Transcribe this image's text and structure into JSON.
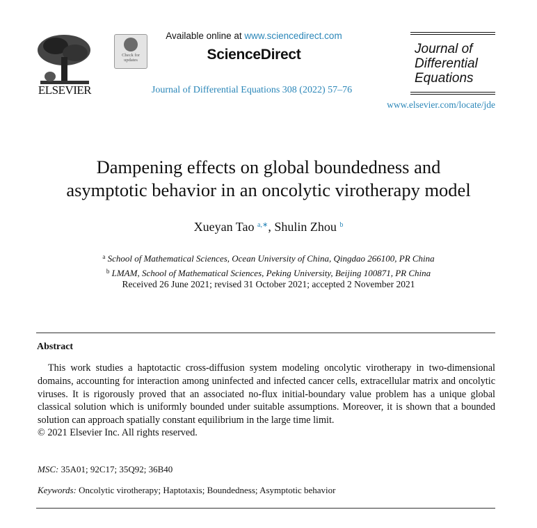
{
  "header": {
    "publisher_logo_text": "ELSEVIER",
    "badge_text": [
      "Check for",
      "updates"
    ],
    "available_prefix": "Available online at ",
    "available_url": "www.sciencedirect.com",
    "platform": "ScienceDirect",
    "journal_reference": "Journal of Differential Equations 308 (2022) 57–76",
    "journal_name_lines": [
      "Journal of",
      "Differential",
      "Equations"
    ],
    "journal_url": "www.elsevier.com/locate/jde"
  },
  "article": {
    "title_lines": [
      "Dampening effects on global boundedness and",
      "asymptotic behavior in an oncolytic virotherapy model"
    ],
    "authors": [
      {
        "name": "Xueyan Tao",
        "marks": "a,∗"
      },
      {
        "name": "Shulin Zhou",
        "marks": "b"
      }
    ],
    "author_separator": ", ",
    "affiliations": [
      {
        "mark": "a",
        "text": "School of Mathematical Sciences, Ocean University of China, Qingdao 266100, PR China"
      },
      {
        "mark": "b",
        "text": "LMAM, School of Mathematical Sciences, Peking University, Beijing 100871, PR China"
      }
    ],
    "dates": "Received 26 June 2021; revised 31 October 2021; accepted 2 November 2021"
  },
  "abstract": {
    "heading": "Abstract",
    "text": "This work studies a haptotactic cross-diffusion system modeling oncolytic virotherapy in two-dimensional domains, accounting for interaction among uninfected and infected cancer cells, extracellular matrix and oncolytic viruses. It is rigorously proved that an associated no-flux initial-boundary value problem has a unique global classical solution which is uniformly bounded under suitable assumptions. Moreover, it is shown that a bounded solution can approach spatially constant equilibrium in the large time limit.",
    "copyright": "© 2021 Elsevier Inc. All rights reserved."
  },
  "msc": {
    "label": "MSC:",
    "value": " 35A01; 92C17; 35Q92; 36B40"
  },
  "keywords": {
    "label": "Keywords:",
    "value": " Oncolytic virotherapy; Haptotaxis; Boundedness; Asymptotic behavior"
  },
  "colors": {
    "link": "#2a86b8",
    "text": "#111111"
  }
}
